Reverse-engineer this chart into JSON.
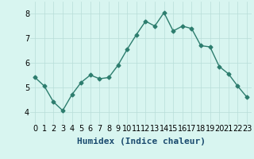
{
  "x": [
    0,
    1,
    2,
    3,
    4,
    5,
    6,
    7,
    8,
    9,
    10,
    11,
    12,
    13,
    14,
    15,
    16,
    17,
    18,
    19,
    20,
    21,
    22,
    23
  ],
  "y": [
    5.4,
    5.05,
    4.4,
    4.05,
    4.7,
    5.2,
    5.5,
    5.35,
    5.4,
    5.9,
    6.55,
    7.15,
    7.7,
    7.5,
    8.05,
    7.3,
    7.5,
    7.4,
    6.7,
    6.65,
    5.85,
    5.55,
    5.05,
    4.6
  ],
  "xlabel": "Humidex (Indice chaleur)",
  "ylim": [
    3.5,
    8.5
  ],
  "xlim": [
    -0.5,
    23.5
  ],
  "yticks": [
    4,
    5,
    6,
    7,
    8
  ],
  "xticks": [
    0,
    1,
    2,
    3,
    4,
    5,
    6,
    7,
    8,
    9,
    10,
    11,
    12,
    13,
    14,
    15,
    16,
    17,
    18,
    19,
    20,
    21,
    22,
    23
  ],
  "line_color": "#2d7d6e",
  "bg_color": "#d8f5f0",
  "grid_color": "#b8ddd8",
  "marker": "D",
  "marker_size": 2.5,
  "line_width": 1.0,
  "xlabel_fontsize": 8,
  "tick_fontsize": 7
}
